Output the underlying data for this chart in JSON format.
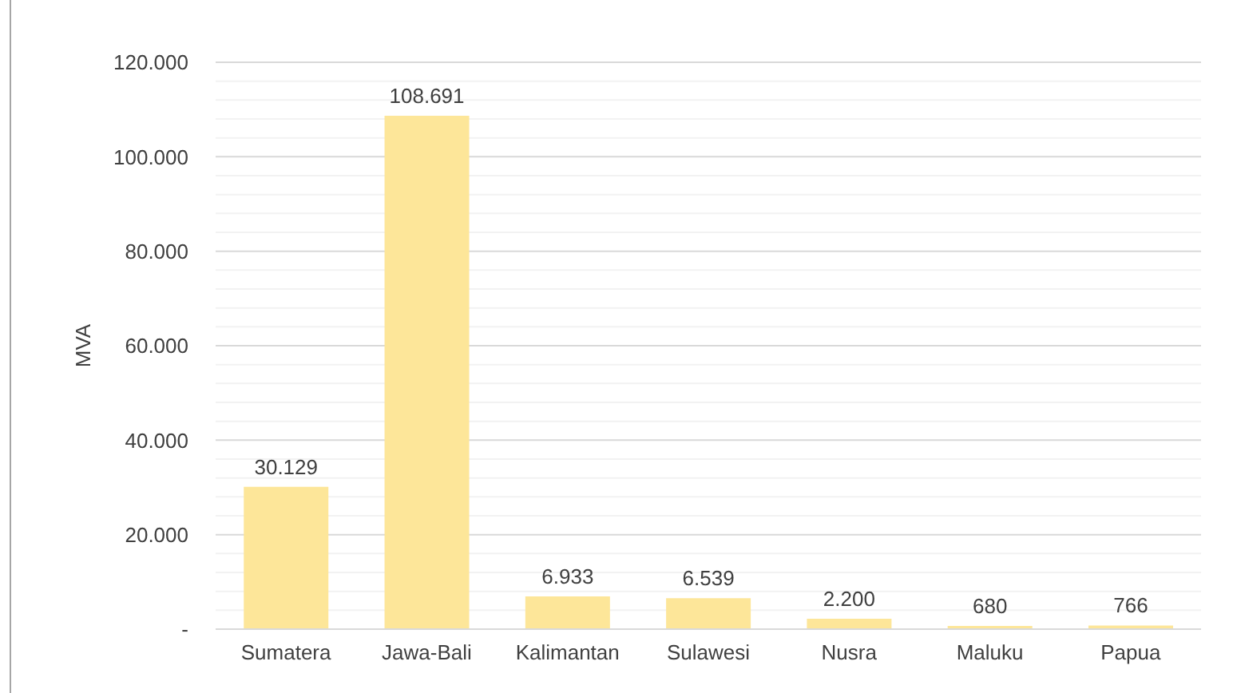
{
  "chart_data": {
    "type": "bar",
    "ylabel": "MVA",
    "categories": [
      "Sumatera",
      "Jawa-Bali",
      "Kalimantan",
      "Sulawesi",
      "Nusra",
      "Maluku",
      "Papua"
    ],
    "values": [
      30129,
      108691,
      6933,
      6539,
      2200,
      680,
      766
    ],
    "value_labels": [
      "30.129",
      "108.691",
      "6.933",
      "6.539",
      "2.200",
      "680",
      "766"
    ],
    "color": "#fde699",
    "ylim": [
      0,
      120000
    ],
    "yticks": [
      {
        "value": 0,
        "label": "-"
      },
      {
        "value": 4000,
        "label": null
      },
      {
        "value": 8000,
        "label": null
      },
      {
        "value": 12000,
        "label": null
      },
      {
        "value": 16000,
        "label": null
      },
      {
        "value": 20000,
        "label": "20.000"
      },
      {
        "value": 24000,
        "label": null
      },
      {
        "value": 28000,
        "label": null
      },
      {
        "value": 32000,
        "label": null
      },
      {
        "value": 36000,
        "label": null
      },
      {
        "value": 40000,
        "label": "40.000"
      },
      {
        "value": 44000,
        "label": null
      },
      {
        "value": 48000,
        "label": null
      },
      {
        "value": 52000,
        "label": null
      },
      {
        "value": 56000,
        "label": null
      },
      {
        "value": 60000,
        "label": "60.000"
      },
      {
        "value": 64000,
        "label": null
      },
      {
        "value": 68000,
        "label": null
      },
      {
        "value": 72000,
        "label": null
      },
      {
        "value": 76000,
        "label": null
      },
      {
        "value": 80000,
        "label": "80.000"
      },
      {
        "value": 84000,
        "label": null
      },
      {
        "value": 88000,
        "label": null
      },
      {
        "value": 92000,
        "label": null
      },
      {
        "value": 96000,
        "label": null
      },
      {
        "value": 100000,
        "label": "100.000"
      },
      {
        "value": 104000,
        "label": null
      },
      {
        "value": 108000,
        "label": null
      },
      {
        "value": 112000,
        "label": null
      },
      {
        "value": 116000,
        "label": null
      },
      {
        "value": 120000,
        "label": "120.000"
      }
    ],
    "grid": "y"
  }
}
